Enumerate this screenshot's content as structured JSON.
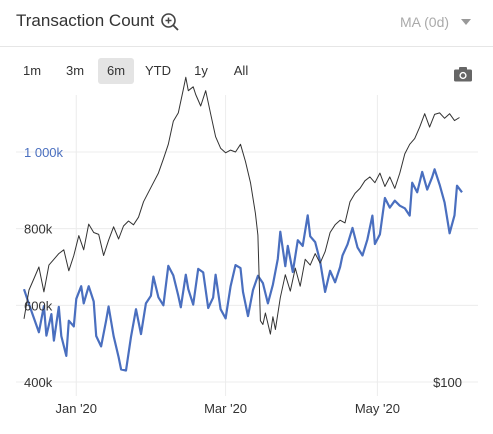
{
  "header": {
    "title": "Transaction Count",
    "ma_label": "MA (0d)"
  },
  "ranges": [
    "1m",
    "3m",
    "6m",
    "YTD",
    "1y",
    "All"
  ],
  "active_range": "6m",
  "colors": {
    "count_line": "#4a6fbf",
    "price_line": "#333333",
    "grid": "#ececec"
  },
  "chart_data": {
    "type": "line",
    "title": "Transaction Count",
    "xlabel": "",
    "ylabel": "",
    "x_ticks": [
      "Jan '20",
      "Mar '20",
      "May '20"
    ],
    "y_ticks": [
      "400k",
      "600k",
      "800k",
      "1 000k"
    ],
    "y_right_tick": "$100",
    "ylim": [
      400000,
      1300000
    ],
    "grid": true,
    "legend": "none",
    "x_days_range": [
      -21,
      155
    ],
    "series": [
      {
        "axis": "left",
        "points": [
          [
            -21,
            642000
          ],
          [
            -19,
            603000
          ],
          [
            -17,
            566000
          ],
          [
            -15,
            530000
          ],
          [
            -13,
            598000
          ],
          [
            -12,
            521000
          ],
          [
            -10,
            577000
          ],
          [
            -9,
            508000
          ],
          [
            -7,
            596000
          ],
          [
            -6,
            520000
          ],
          [
            -4,
            468000
          ],
          [
            -3,
            560000
          ],
          [
            -1,
            545000
          ],
          [
            0,
            617000
          ],
          [
            2,
            650000
          ],
          [
            3,
            605000
          ],
          [
            5,
            650000
          ],
          [
            7,
            610000
          ],
          [
            8,
            520000
          ],
          [
            10,
            493000
          ],
          [
            12,
            560000
          ],
          [
            13,
            597000
          ],
          [
            15,
            520000
          ],
          [
            17,
            465000
          ],
          [
            18,
            433000
          ],
          [
            20,
            430000
          ],
          [
            22,
            518000
          ],
          [
            24,
            590000
          ],
          [
            26,
            525000
          ],
          [
            28,
            605000
          ],
          [
            30,
            625000
          ],
          [
            31,
            675000
          ],
          [
            33,
            621000
          ],
          [
            35,
            600000
          ],
          [
            37,
            703000
          ],
          [
            39,
            678000
          ],
          [
            41,
            625000
          ],
          [
            42,
            595000
          ],
          [
            44,
            680000
          ],
          [
            45,
            642000
          ],
          [
            47,
            602000
          ],
          [
            49,
            695000
          ],
          [
            51,
            686000
          ],
          [
            53,
            593000
          ],
          [
            55,
            620000
          ],
          [
            56,
            680000
          ],
          [
            58,
            590000
          ],
          [
            60,
            566000
          ],
          [
            62,
            650000
          ],
          [
            64,
            705000
          ],
          [
            66,
            697000
          ],
          [
            67,
            635000
          ],
          [
            69,
            572000
          ],
          [
            71,
            640000
          ],
          [
            73,
            677000
          ],
          [
            75,
            658000
          ],
          [
            77,
            605000
          ],
          [
            79,
            654000
          ],
          [
            81,
            721000
          ],
          [
            82,
            792000
          ],
          [
            84,
            702000
          ],
          [
            85,
            755000
          ],
          [
            87,
            687000
          ],
          [
            89,
            770000
          ],
          [
            91,
            755000
          ],
          [
            93,
            835000
          ],
          [
            94,
            780000
          ],
          [
            96,
            765000
          ],
          [
            98,
            715000
          ],
          [
            100,
            635000
          ],
          [
            102,
            690000
          ],
          [
            104,
            660000
          ],
          [
            106,
            700000
          ],
          [
            107,
            730000
          ],
          [
            109,
            759000
          ],
          [
            111,
            802000
          ],
          [
            113,
            751000
          ],
          [
            115,
            730000
          ],
          [
            117,
            772000
          ],
          [
            119,
            834000
          ],
          [
            120,
            760000
          ],
          [
            122,
            785000
          ],
          [
            124,
            880000
          ],
          [
            126,
            855000
          ],
          [
            128,
            873000
          ],
          [
            130,
            860000
          ],
          [
            132,
            853000
          ],
          [
            134,
            834000
          ],
          [
            135,
            920000
          ],
          [
            137,
            895000
          ],
          [
            139,
            948000
          ],
          [
            141,
            902000
          ],
          [
            143,
            934000
          ],
          [
            144,
            955000
          ],
          [
            146,
            915000
          ],
          [
            148,
            868000
          ],
          [
            150,
            788000
          ],
          [
            152,
            835000
          ],
          [
            153,
            912000
          ],
          [
            155,
            895000
          ]
        ]
      },
      {
        "axis": "right",
        "points": [
          [
            -21,
            565000
          ],
          [
            -19,
            640000
          ],
          [
            -17,
            670000
          ],
          [
            -15,
            700000
          ],
          [
            -13,
            635000
          ],
          [
            -11,
            705000
          ],
          [
            -9,
            720000
          ],
          [
            -7,
            735000
          ],
          [
            -5,
            745000
          ],
          [
            -3,
            690000
          ],
          [
            -1,
            730000
          ],
          [
            1,
            782000
          ],
          [
            3,
            745000
          ],
          [
            5,
            812000
          ],
          [
            7,
            790000
          ],
          [
            9,
            785000
          ],
          [
            11,
            730000
          ],
          [
            13,
            770000
          ],
          [
            15,
            805000
          ],
          [
            17,
            773000
          ],
          [
            19,
            807000
          ],
          [
            21,
            820000
          ],
          [
            23,
            810000
          ],
          [
            25,
            830000
          ],
          [
            27,
            870000
          ],
          [
            29,
            895000
          ],
          [
            31,
            920000
          ],
          [
            33,
            945000
          ],
          [
            35,
            982000
          ],
          [
            37,
            1020000
          ],
          [
            39,
            1080000
          ],
          [
            41,
            1102000
          ],
          [
            43,
            1163000
          ],
          [
            44,
            1195000
          ],
          [
            45,
            1160000
          ],
          [
            47,
            1170000
          ],
          [
            48,
            1150000
          ],
          [
            50,
            1120000
          ],
          [
            52,
            1160000
          ],
          [
            54,
            1100000
          ],
          [
            56,
            1040000
          ],
          [
            58,
            1010000
          ],
          [
            60,
            998000
          ],
          [
            62,
            1005000
          ],
          [
            64,
            1000000
          ],
          [
            66,
            1020000
          ],
          [
            68,
            975000
          ],
          [
            70,
            920000
          ],
          [
            72,
            840000
          ],
          [
            73,
            783000
          ],
          [
            74,
            560000
          ],
          [
            75,
            550000
          ],
          [
            76,
            580000
          ],
          [
            78,
            525000
          ],
          [
            79,
            570000
          ],
          [
            80,
            537000
          ],
          [
            82,
            620000
          ],
          [
            84,
            680000
          ],
          [
            86,
            637000
          ],
          [
            88,
            697000
          ],
          [
            90,
            650000
          ],
          [
            92,
            720000
          ],
          [
            94,
            705000
          ],
          [
            96,
            735000
          ],
          [
            98,
            710000
          ],
          [
            100,
            740000
          ],
          [
            102,
            790000
          ],
          [
            104,
            810000
          ],
          [
            106,
            822000
          ],
          [
            108,
            815000
          ],
          [
            110,
            870000
          ],
          [
            112,
            892000
          ],
          [
            114,
            905000
          ],
          [
            116,
            925000
          ],
          [
            118,
            935000
          ],
          [
            120,
            920000
          ],
          [
            122,
            945000
          ],
          [
            124,
            910000
          ],
          [
            126,
            935000
          ],
          [
            128,
            905000
          ],
          [
            130,
            945000
          ],
          [
            132,
            995000
          ],
          [
            134,
            1020000
          ],
          [
            136,
            1035000
          ],
          [
            138,
            1065000
          ],
          [
            140,
            1100000
          ],
          [
            142,
            1065000
          ],
          [
            144,
            1098000
          ],
          [
            146,
            1102000
          ],
          [
            148,
            1088000
          ],
          [
            150,
            1100000
          ],
          [
            152,
            1082000
          ],
          [
            154,
            1090000
          ]
        ]
      }
    ]
  }
}
